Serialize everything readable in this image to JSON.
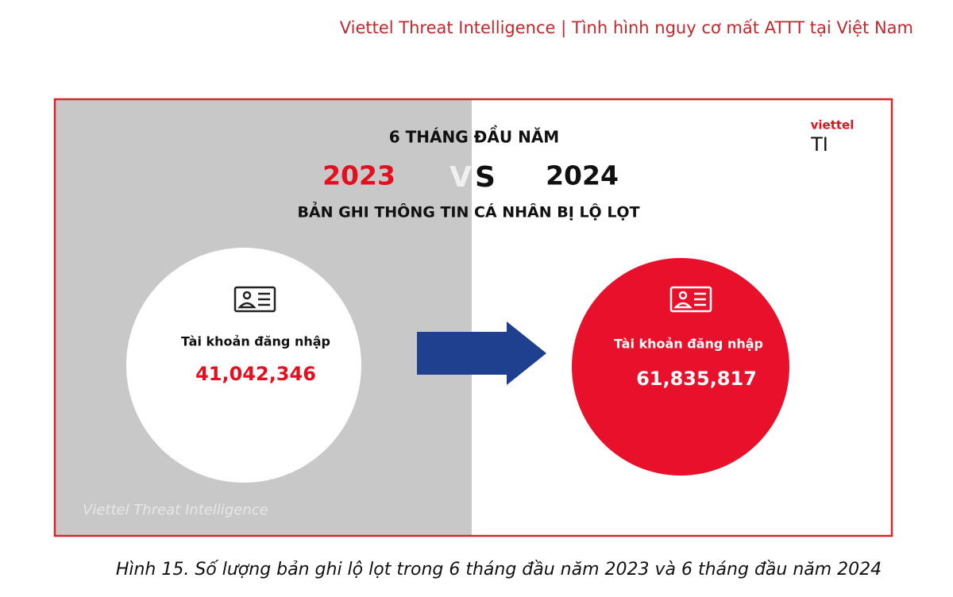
{
  "header": {
    "title": "Viettel Threat Intelligence | Tình hình nguy cơ mất ATTT tại Việt Nam"
  },
  "figure": {
    "heading": "6 THÁNG ĐẦU NĂM",
    "year_left": "2023",
    "versus": [
      "V",
      "S"
    ],
    "year_right": "2024",
    "subtitle": "BẢN GHI THÔNG TIN CÁ NHÂN BỊ LỘ LỌT",
    "logo": {
      "brand": "viettel",
      "mark": "TI"
    },
    "left": {
      "label": "Tài khoản đăng nhập",
      "value": "41,042,346"
    },
    "right": {
      "label": "Tài khoản đăng nhập",
      "value": "61,835,817"
    },
    "watermark": "Viettel Threat Intelligence"
  },
  "caption": "Hình 15. Số lượng bản ghi lộ lọt trong 6 tháng đầu năm 2023 và 6 tháng đầu năm 2024"
}
